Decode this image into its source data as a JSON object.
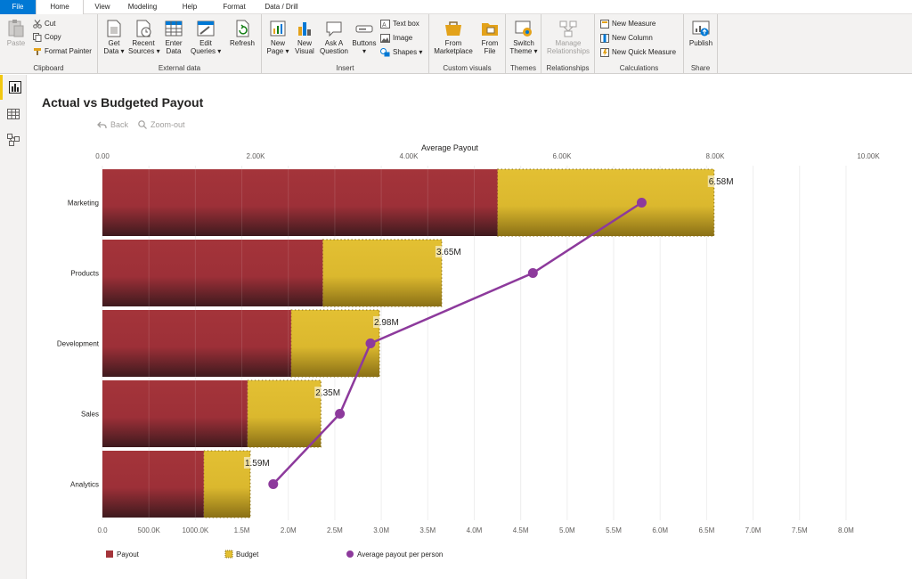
{
  "menu": {
    "tabs": [
      {
        "label": "File"
      },
      {
        "label": "Home"
      },
      {
        "label": "View"
      },
      {
        "label": "Modeling"
      },
      {
        "label": "Help"
      },
      {
        "label": "Format"
      },
      {
        "label": "Data / Drill"
      }
    ]
  },
  "ribbon": {
    "clipboard": {
      "paste": "Paste",
      "cut": "Cut",
      "copy": "Copy",
      "format_painter": "Format Painter",
      "label": "Clipboard"
    },
    "external_data": {
      "get_data_1": "Get",
      "get_data_2": "Data ▾",
      "recent_1": "Recent",
      "recent_2": "Sources ▾",
      "enter_1": "Enter",
      "enter_2": "Data",
      "edit_1": "Edit",
      "edit_2": "Queries ▾",
      "refresh": "Refresh",
      "label": "External data"
    },
    "insert": {
      "new_page_1": "New",
      "new_page_2": "Page ▾",
      "new_visual_1": "New",
      "new_visual_2": "Visual",
      "ask_1": "Ask A",
      "ask_2": "Question",
      "buttons_1": "Buttons",
      "buttons_2": "▾",
      "text_box": "Text box",
      "image": "Image",
      "shapes": "Shapes ▾",
      "label": "Insert"
    },
    "custom_visuals": {
      "marketplace_1": "From",
      "marketplace_2": "Marketplace",
      "file_1": "From",
      "file_2": "File",
      "label": "Custom visuals"
    },
    "themes": {
      "switch_1": "Switch",
      "switch_2": "Theme ▾",
      "label": "Themes"
    },
    "relationships": {
      "manage_1": "Manage",
      "manage_2": "Relationships",
      "label": "Relationships"
    },
    "calculations": {
      "new_measure": "New Measure",
      "new_column": "New Column",
      "new_quick_measure": "New Quick Measure",
      "label": "Calculations"
    },
    "share": {
      "publish": "Publish",
      "label": "Share"
    }
  },
  "leftnav": {
    "icons": [
      "report-view-icon",
      "data-view-icon",
      "model-view-icon"
    ]
  },
  "visual": {
    "title": "Actual vs Budgeted Payout",
    "back": "Back",
    "zoom_out": "Zoom-out"
  },
  "colors": {
    "payout": "#a4343a",
    "budget": "#e3c033",
    "line": "#8d3a9c",
    "accent": "#f2c811",
    "file_tab": "#0078d4"
  },
  "chart_data": {
    "type": "bar",
    "orientation": "horizontal",
    "categories": [
      "Marketing",
      "Products",
      "Development",
      "Sales",
      "Analytics"
    ],
    "series": [
      {
        "name": "Payout",
        "axis": "bottom",
        "values": [
          4.25,
          2.37,
          2.03,
          1.56,
          1.09
        ]
      },
      {
        "name": "Budget",
        "axis": "bottom",
        "values": [
          6.58,
          3.65,
          2.98,
          2.35,
          1.59
        ]
      },
      {
        "name": "Average payout per person",
        "axis": "top",
        "type": "line",
        "values": [
          7.04,
          5.62,
          3.5,
          3.1,
          2.23
        ]
      }
    ],
    "data_labels": [
      "6.58M",
      "3.65M",
      "2.98M",
      "2.35M",
      "1.59M"
    ],
    "top_axis": {
      "title": "Average Payout",
      "range": [
        0,
        10
      ],
      "ticks": [
        0,
        2,
        4,
        6,
        8,
        10
      ],
      "tick_labels": [
        "0.00",
        "2.00K",
        "4.00K",
        "6.00K",
        "8.00K",
        "10.00K"
      ]
    },
    "bottom_axis": {
      "range": [
        0,
        8.24
      ],
      "ticks": [
        0,
        0.5,
        1,
        1.5,
        2,
        2.5,
        3,
        3.5,
        4,
        4.5,
        5,
        5.5,
        6,
        6.5,
        7,
        7.5,
        8
      ],
      "tick_labels": [
        "0.0",
        "500.0K",
        "1000.0K",
        "1.5M",
        "2.0M",
        "2.5M",
        "3.0M",
        "3.5M",
        "4.0M",
        "4.5M",
        "5.0M",
        "5.5M",
        "6.0M",
        "6.5M",
        "7.0M",
        "7.5M",
        "8.0M"
      ]
    },
    "gridlines": true,
    "legend": {
      "position": "bottom-left",
      "entries": [
        "Payout",
        "Budget",
        "Average payout per person"
      ]
    }
  }
}
